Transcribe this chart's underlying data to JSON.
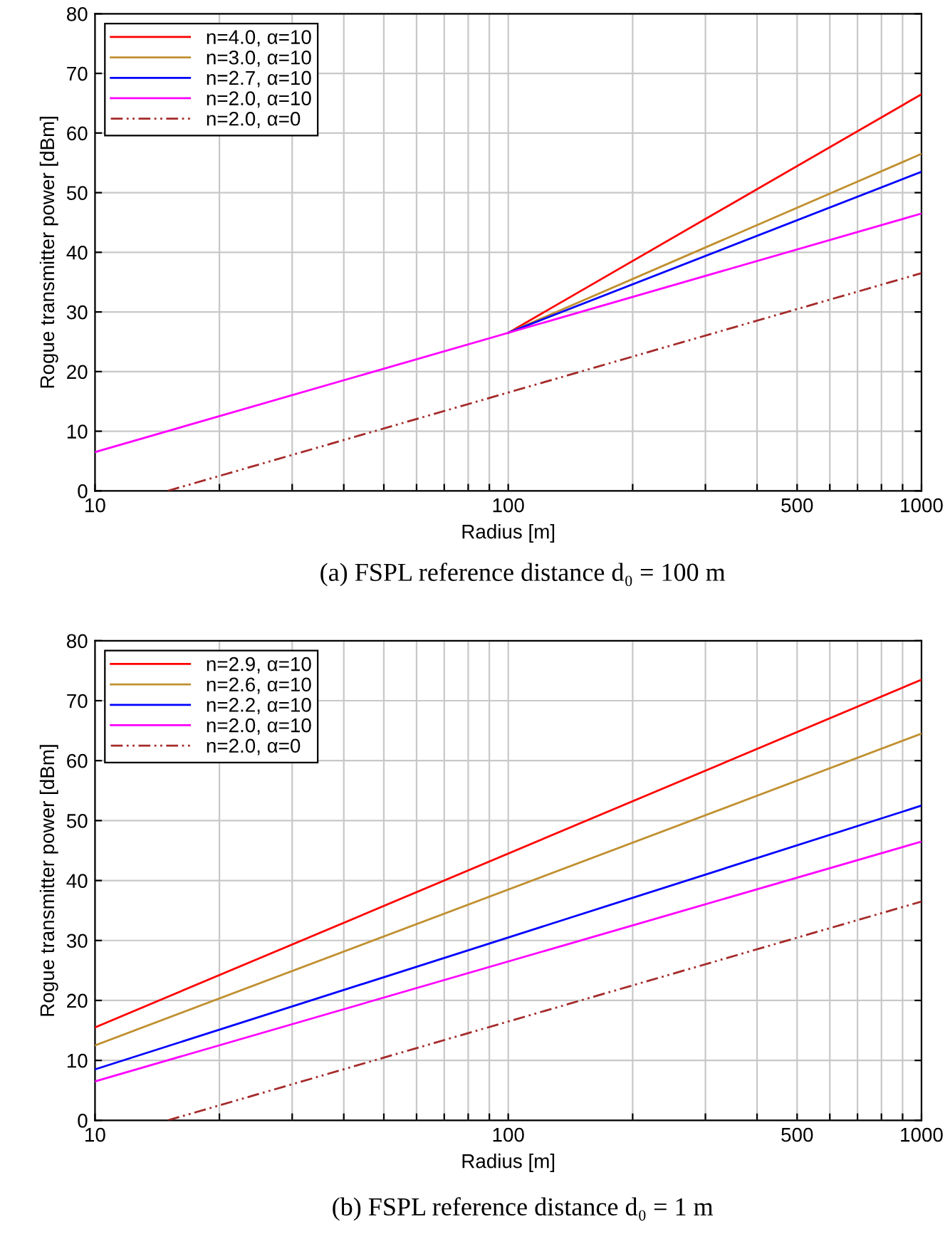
{
  "chart_data": [
    {
      "type": "line",
      "xlabel": "Radius [m]",
      "ylabel": "Rogue transmitter power [dBm]",
      "log": "x",
      "grid": true,
      "legend": "top left",
      "xlim": [
        10,
        1000
      ],
      "ylim": [
        0,
        80
      ],
      "xticks": [
        10,
        {
          "value": 20,
          "label": null
        },
        {
          "value": 30,
          "label": null
        },
        {
          "value": 40,
          "label": null
        },
        {
          "value": 50,
          "label": null
        },
        {
          "value": 60,
          "label": null
        },
        {
          "value": 70,
          "label": null
        },
        {
          "value": 80,
          "label": null
        },
        {
          "value": 90,
          "label": null
        },
        100,
        {
          "value": 200,
          "label": null
        },
        {
          "value": 300,
          "label": null
        },
        {
          "value": 400,
          "label": null
        },
        500,
        {
          "value": 600,
          "label": null
        },
        {
          "value": 700,
          "label": null
        },
        {
          "value": 800,
          "label": null
        },
        {
          "value": 900,
          "label": null
        },
        1000
      ],
      "yticks": [
        0,
        10,
        20,
        30,
        40,
        50,
        60,
        70,
        80
      ],
      "annotations": [
        "(a) FSPL reference distance d₀ = 100 m"
      ],
      "series": [
        {
          "name": "n=4.0, α=10",
          "color": "#ff0000",
          "x": [
            100,
            1000
          ],
          "values": [
            26.5,
            66.5
          ]
        },
        {
          "name": "n=3.0, α=10",
          "color": "#c09030",
          "x": [
            100,
            1000
          ],
          "values": [
            26.5,
            56.5
          ]
        },
        {
          "name": "n=2.7, α=10",
          "color": "#0000ff",
          "x": [
            100,
            1000
          ],
          "values": [
            26.5,
            53.5
          ]
        },
        {
          "name": "n=2.0, α=10",
          "color": "#ff00ff",
          "x": [
            10,
            1000
          ],
          "values": [
            6.5,
            46.5
          ]
        },
        {
          "name": "n=2.0, α=0",
          "color": "#a52a2a",
          "line_style": "dashdot",
          "x": [
            15,
            1000
          ],
          "values": [
            0,
            36.5
          ]
        }
      ]
    },
    {
      "type": "line",
      "xlabel": "Radius [m]",
      "ylabel": "Rogue transmitter power [dBm]",
      "log": "x",
      "grid": true,
      "legend": "top left",
      "xlim": [
        10,
        1000
      ],
      "ylim": [
        0,
        80
      ],
      "xticks": [
        10,
        {
          "value": 20,
          "label": null
        },
        {
          "value": 30,
          "label": null
        },
        {
          "value": 40,
          "label": null
        },
        {
          "value": 50,
          "label": null
        },
        {
          "value": 60,
          "label": null
        },
        {
          "value": 70,
          "label": null
        },
        {
          "value": 80,
          "label": null
        },
        {
          "value": 90,
          "label": null
        },
        100,
        {
          "value": 200,
          "label": null
        },
        {
          "value": 300,
          "label": null
        },
        {
          "value": 400,
          "label": null
        },
        500,
        {
          "value": 600,
          "label": null
        },
        {
          "value": 700,
          "label": null
        },
        {
          "value": 800,
          "label": null
        },
        {
          "value": 900,
          "label": null
        },
        1000
      ],
      "yticks": [
        0,
        10,
        20,
        30,
        40,
        50,
        60,
        70,
        80
      ],
      "annotations": [
        "(b) FSPL reference distance d₀ = 1 m"
      ],
      "series": [
        {
          "name": "n=2.9, α=10",
          "color": "#ff0000",
          "x": [
            10,
            1000
          ],
          "values": [
            15.5,
            73.5
          ]
        },
        {
          "name": "n=2.6, α=10",
          "color": "#c09030",
          "x": [
            10,
            1000
          ],
          "values": [
            12.5,
            64.5
          ]
        },
        {
          "name": "n=2.2, α=10",
          "color": "#0000ff",
          "x": [
            10,
            1000
          ],
          "values": [
            8.5,
            52.5
          ]
        },
        {
          "name": "n=2.0, α=10",
          "color": "#ff00ff",
          "x": [
            10,
            1000
          ],
          "values": [
            6.5,
            46.5
          ]
        },
        {
          "name": "n=2.0, α=0",
          "color": "#a52a2a",
          "line_style": "dashdot",
          "x": [
            15,
            1000
          ],
          "values": [
            0,
            36.5
          ]
        }
      ]
    }
  ]
}
